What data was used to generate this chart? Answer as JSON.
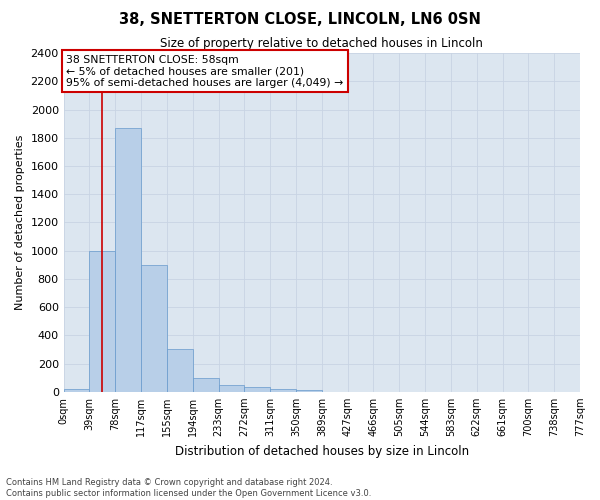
{
  "title": "38, SNETTERTON CLOSE, LINCOLN, LN6 0SN",
  "subtitle": "Size of property relative to detached houses in Lincoln",
  "xlabel": "Distribution of detached houses by size in Lincoln",
  "ylabel": "Number of detached properties",
  "bar_color": "#b8cfe8",
  "bar_edge_color": "#6699cc",
  "grid_color": "#c8d4e3",
  "background_color": "#dce6f0",
  "bin_labels": [
    "0sqm",
    "39sqm",
    "78sqm",
    "117sqm",
    "155sqm",
    "194sqm",
    "233sqm",
    "272sqm",
    "311sqm",
    "350sqm",
    "389sqm",
    "427sqm",
    "466sqm",
    "505sqm",
    "544sqm",
    "583sqm",
    "622sqm",
    "661sqm",
    "700sqm",
    "738sqm",
    "777sqm"
  ],
  "bar_values": [
    20,
    1000,
    1870,
    900,
    305,
    100,
    50,
    35,
    20,
    15,
    0,
    0,
    0,
    0,
    0,
    0,
    0,
    0,
    0,
    0
  ],
  "ylim": [
    0,
    2400
  ],
  "yticks": [
    0,
    200,
    400,
    600,
    800,
    1000,
    1200,
    1400,
    1600,
    1800,
    2000,
    2200,
    2400
  ],
  "property_label": "38 SNETTERTON CLOSE: 58sqm",
  "annotation_line1": "← 5% of detached houses are smaller (201)",
  "annotation_line2": "95% of semi-detached houses are larger (4,049) →",
  "annotation_box_color": "#ffffff",
  "annotation_box_edge": "#cc0000",
  "line_color": "#cc0000",
  "footer1": "Contains HM Land Registry data © Crown copyright and database right 2024.",
  "footer2": "Contains public sector information licensed under the Open Government Licence v3.0."
}
